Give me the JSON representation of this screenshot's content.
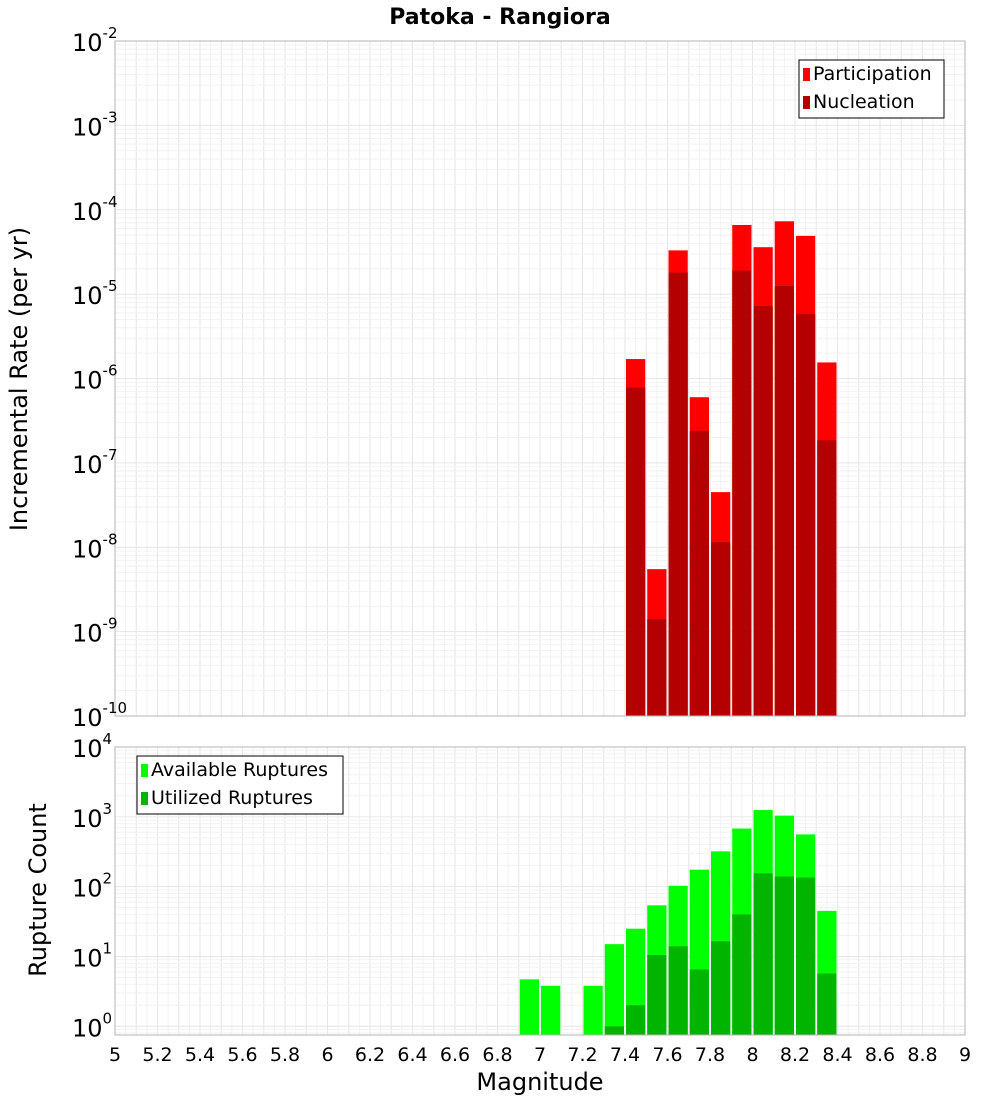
{
  "chart_data": [
    {
      "type": "bar",
      "title": "Patoka - Rangiora",
      "ylabel": "Incremental Rate (per yr)",
      "xlabel": "",
      "x_range": [
        5,
        9
      ],
      "ylim": [
        1e-10,
        0.01
      ],
      "y_scale": "log",
      "y_tick_exponents": [
        "-10",
        "-9",
        "-8",
        "-7",
        "-6",
        "-5",
        "-4",
        "-3",
        "-2"
      ],
      "grid": true,
      "legend_position": "top-right",
      "bar_width": 0.1,
      "x": [
        7.45,
        7.55,
        7.65,
        7.75,
        7.85,
        7.95,
        8.05,
        8.15,
        8.25,
        8.35
      ],
      "series": [
        {
          "name": "Participation",
          "color": "#ff0000",
          "values": [
            1.7e-06,
            5.5e-09,
            3.3e-05,
            6e-07,
            4.5e-08,
            6.6e-05,
            3.6e-05,
            7.3e-05,
            4.9e-05,
            1.55e-06
          ]
        },
        {
          "name": "Nucleation",
          "color": "#b40000",
          "values": [
            7.8e-07,
            1.4e-09,
            1.8e-05,
            2.4e-07,
            1.15e-08,
            1.9e-05,
            7.2e-06,
            1.25e-05,
            5.8e-06,
            1.85e-07
          ]
        }
      ]
    },
    {
      "type": "bar",
      "title": "",
      "ylabel": "Rupture Count",
      "xlabel": "Magnitude",
      "x_range": [
        5,
        9
      ],
      "x_ticks": [
        "5",
        "5.2",
        "5.4",
        "5.6",
        "5.8",
        "6",
        "6.2",
        "6.4",
        "6.6",
        "6.8",
        "7",
        "7.2",
        "7.4",
        "7.6",
        "7.8",
        "8",
        "8.2",
        "8.4",
        "8.6",
        "8.8",
        "9"
      ],
      "ylim": [
        0.75,
        10000.0
      ],
      "y_scale": "log",
      "y_tick_exponents": [
        "0",
        "1",
        "2",
        "3",
        "4"
      ],
      "grid": true,
      "legend_position": "top-left",
      "bar_width": 0.1,
      "x": [
        6.95,
        7.05,
        7.25,
        7.35,
        7.45,
        7.55,
        7.65,
        7.75,
        7.85,
        7.95,
        8.05,
        8.15,
        8.25,
        8.35
      ],
      "series": [
        {
          "name": "Available Ruptures",
          "color": "#00ff00",
          "values": [
            4.7,
            3.8,
            3.8,
            15,
            25,
            54,
            103,
            175,
            320,
            680,
            1250,
            1040,
            560,
            45
          ]
        },
        {
          "name": "Utilized Ruptures",
          "color": "#00b400",
          "values": [
            0,
            0,
            0,
            1,
            2,
            10.5,
            14,
            6.5,
            16.5,
            40,
            155,
            140,
            135,
            5.7
          ]
        }
      ]
    }
  ]
}
